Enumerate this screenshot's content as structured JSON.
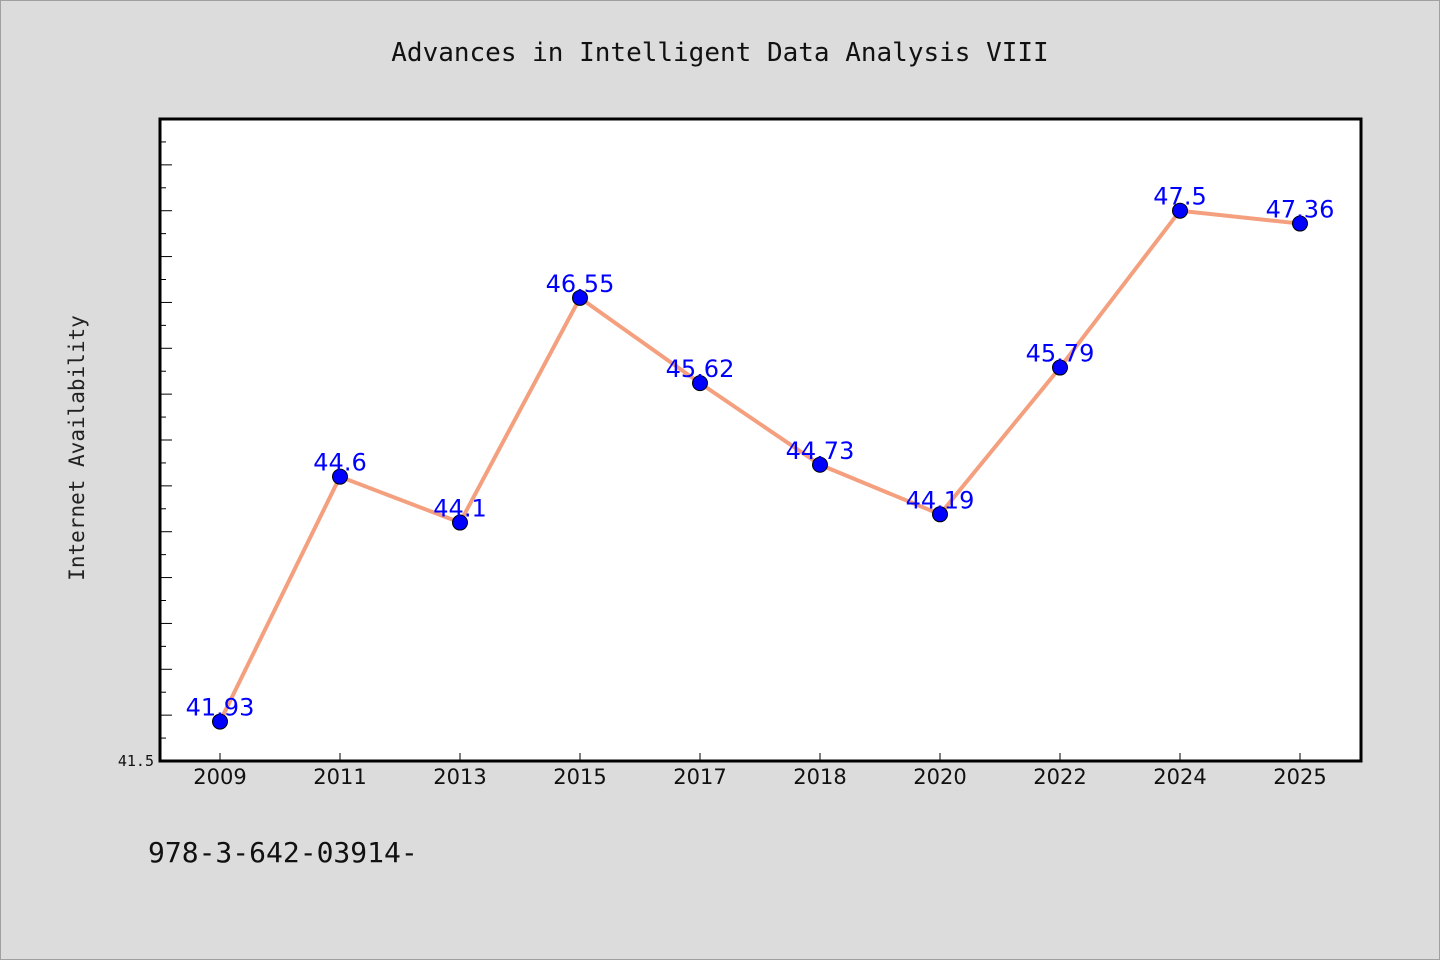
{
  "chart_data": {
    "type": "line",
    "title": "Advances in Intelligent Data Analysis VIII",
    "xlabel": "",
    "ylabel": "Internet Availability",
    "categories": [
      "2009",
      "2011",
      "2013",
      "2015",
      "2017",
      "2018",
      "2020",
      "2022",
      "2024",
      "2025"
    ],
    "series": [
      {
        "values": [
          41.93,
          44.6,
          44.1,
          46.55,
          45.62,
          44.73,
          44.19,
          45.79,
          47.5,
          47.36
        ],
        "labels": [
          "41.93",
          "44.6",
          "44.1",
          "46.55",
          "45.62",
          "44.73",
          "44.19",
          "45.79",
          "47.5",
          "47.36"
        ],
        "line_color": "#f4a07e",
        "marker_color": "#0000ff"
      }
    ],
    "ylim": [
      41.5,
      48.5
    ],
    "y_tick_labels": [
      "41.5"
    ],
    "grid": false,
    "legend": "none"
  },
  "footer_text": "978-3-642-03914-",
  "colors": {
    "background": "#dcdcdc",
    "plot_background": "#ffffff",
    "axis": "#000000",
    "data_label": "#0000ff"
  }
}
